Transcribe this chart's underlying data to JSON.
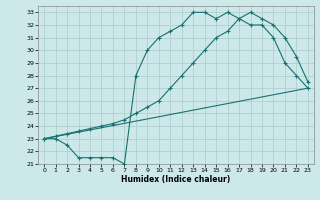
{
  "xlabel": "Humidex (Indice chaleur)",
  "bg_color": "#cce8e8",
  "grid_color": "#aacccc",
  "line_color": "#1a7070",
  "xlim": [
    -0.5,
    23.5
  ],
  "ylim": [
    21,
    33.5
  ],
  "xticks": [
    0,
    1,
    2,
    3,
    4,
    5,
    6,
    7,
    8,
    9,
    10,
    11,
    12,
    13,
    14,
    15,
    16,
    17,
    18,
    19,
    20,
    21,
    22,
    23
  ],
  "yticks": [
    21,
    22,
    23,
    24,
    25,
    26,
    27,
    28,
    29,
    30,
    31,
    32,
    33
  ],
  "curve1_x": [
    0,
    1,
    2,
    3,
    4,
    5,
    6,
    7,
    8,
    9,
    10,
    11,
    12,
    13,
    14,
    15,
    16,
    17,
    18,
    19,
    20,
    21,
    22,
    23
  ],
  "curve1_y": [
    23,
    23,
    22.5,
    21.5,
    21.5,
    21.5,
    21.5,
    21,
    28,
    30,
    31,
    31.5,
    32,
    33,
    33,
    32.5,
    33,
    32.5,
    32,
    32,
    31,
    29,
    28,
    27
  ],
  "curve2_x": [
    0,
    1,
    2,
    3,
    4,
    5,
    6,
    7,
    8,
    9,
    10,
    11,
    12,
    13,
    14,
    15,
    16,
    17,
    18,
    19,
    20,
    21,
    22,
    23
  ],
  "curve2_y": [
    23,
    23.2,
    23.4,
    23.6,
    23.8,
    24.0,
    24.2,
    24.5,
    25.0,
    25.5,
    26.0,
    27.0,
    28.0,
    29.0,
    30.0,
    31.0,
    31.5,
    32.5,
    33,
    32.5,
    32,
    31,
    29.5,
    27.5
  ],
  "curve3_x": [
    0,
    23
  ],
  "curve3_y": [
    23,
    27
  ]
}
